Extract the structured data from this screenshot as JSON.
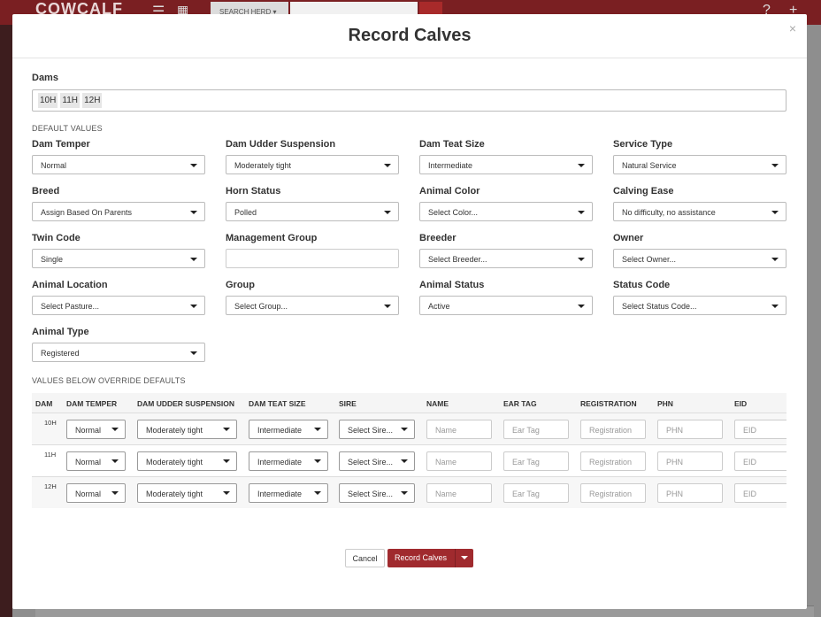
{
  "background": {
    "logo_text": "COWCALF",
    "search_label": "SEARCH HERD",
    "icons": [
      "back-icon",
      "menu-icon",
      "calendar-icon",
      "search-icon",
      "help-icon",
      "add-icon"
    ]
  },
  "modal": {
    "title": "Record Calves",
    "close_label": "×",
    "dams_label": "Dams",
    "dams": [
      "10H",
      "11H",
      "12H"
    ],
    "default_values_caption": "DEFAULT VALUES",
    "defaults": [
      {
        "label": "Dam Temper",
        "value": "Normal",
        "kind": "select"
      },
      {
        "label": "Dam Udder Suspension",
        "value": "Moderately tight",
        "kind": "select"
      },
      {
        "label": "Dam Teat Size",
        "value": "Intermediate",
        "kind": "select"
      },
      {
        "label": "Service Type",
        "value": "Natural Service",
        "kind": "select"
      },
      {
        "label": "Breed",
        "value": "Assign Based On Parents",
        "kind": "select"
      },
      {
        "label": "Horn Status",
        "value": "Polled",
        "kind": "select"
      },
      {
        "label": "Animal Color",
        "value": "Select Color...",
        "kind": "select"
      },
      {
        "label": "Calving Ease",
        "value": "No difficulty, no assistance",
        "kind": "select"
      },
      {
        "label": "Twin Code",
        "value": "Single",
        "kind": "select"
      },
      {
        "label": "Management Group",
        "value": "",
        "kind": "text"
      },
      {
        "label": "Breeder",
        "value": "Select Breeder...",
        "kind": "select"
      },
      {
        "label": "Owner",
        "value": "Select Owner...",
        "kind": "select"
      },
      {
        "label": "Animal Location",
        "value": "Select Pasture...",
        "kind": "select"
      },
      {
        "label": "Group",
        "value": "Select Group...",
        "kind": "select"
      },
      {
        "label": "Animal Status",
        "value": "Active",
        "kind": "select"
      },
      {
        "label": "Status Code",
        "value": "Select Status Code...",
        "kind": "select"
      },
      {
        "label": "Animal Type",
        "value": "Registered",
        "kind": "select"
      }
    ],
    "override_caption": "VALUES BELOW OVERRIDE DEFAULTS",
    "override_columns": [
      "DAM",
      "DAM TEMPER",
      "DAM UDDER SUSPENSION",
      "DAM TEAT SIZE",
      "SIRE",
      "NAME",
      "EAR TAG",
      "REGISTRATION",
      "PHN",
      "EID"
    ],
    "override_rows": [
      {
        "dam": "10H",
        "temper": "Normal",
        "udder": "Moderately tight",
        "teat": "Intermediate",
        "sire": "Select Sire...",
        "name_ph": "Name",
        "eartag_ph": "Ear Tag",
        "registration_ph": "Registration",
        "phn_ph": "PHN",
        "eid_ph": "EID"
      },
      {
        "dam": "11H",
        "temper": "Normal",
        "udder": "Moderately tight",
        "teat": "Intermediate",
        "sire": "Select Sire...",
        "name_ph": "Name",
        "eartag_ph": "Ear Tag",
        "registration_ph": "Registration",
        "phn_ph": "PHN",
        "eid_ph": "EID"
      },
      {
        "dam": "12H",
        "temper": "Normal",
        "udder": "Moderately tight",
        "teat": "Intermediate",
        "sire": "Select Sire...",
        "name_ph": "Name",
        "eartag_ph": "Ear Tag",
        "registration_ph": "Registration",
        "phn_ph": "PHN",
        "eid_ph": "EID"
      }
    ],
    "cancel_label": "Cancel",
    "submit_label": "Record Calves"
  }
}
